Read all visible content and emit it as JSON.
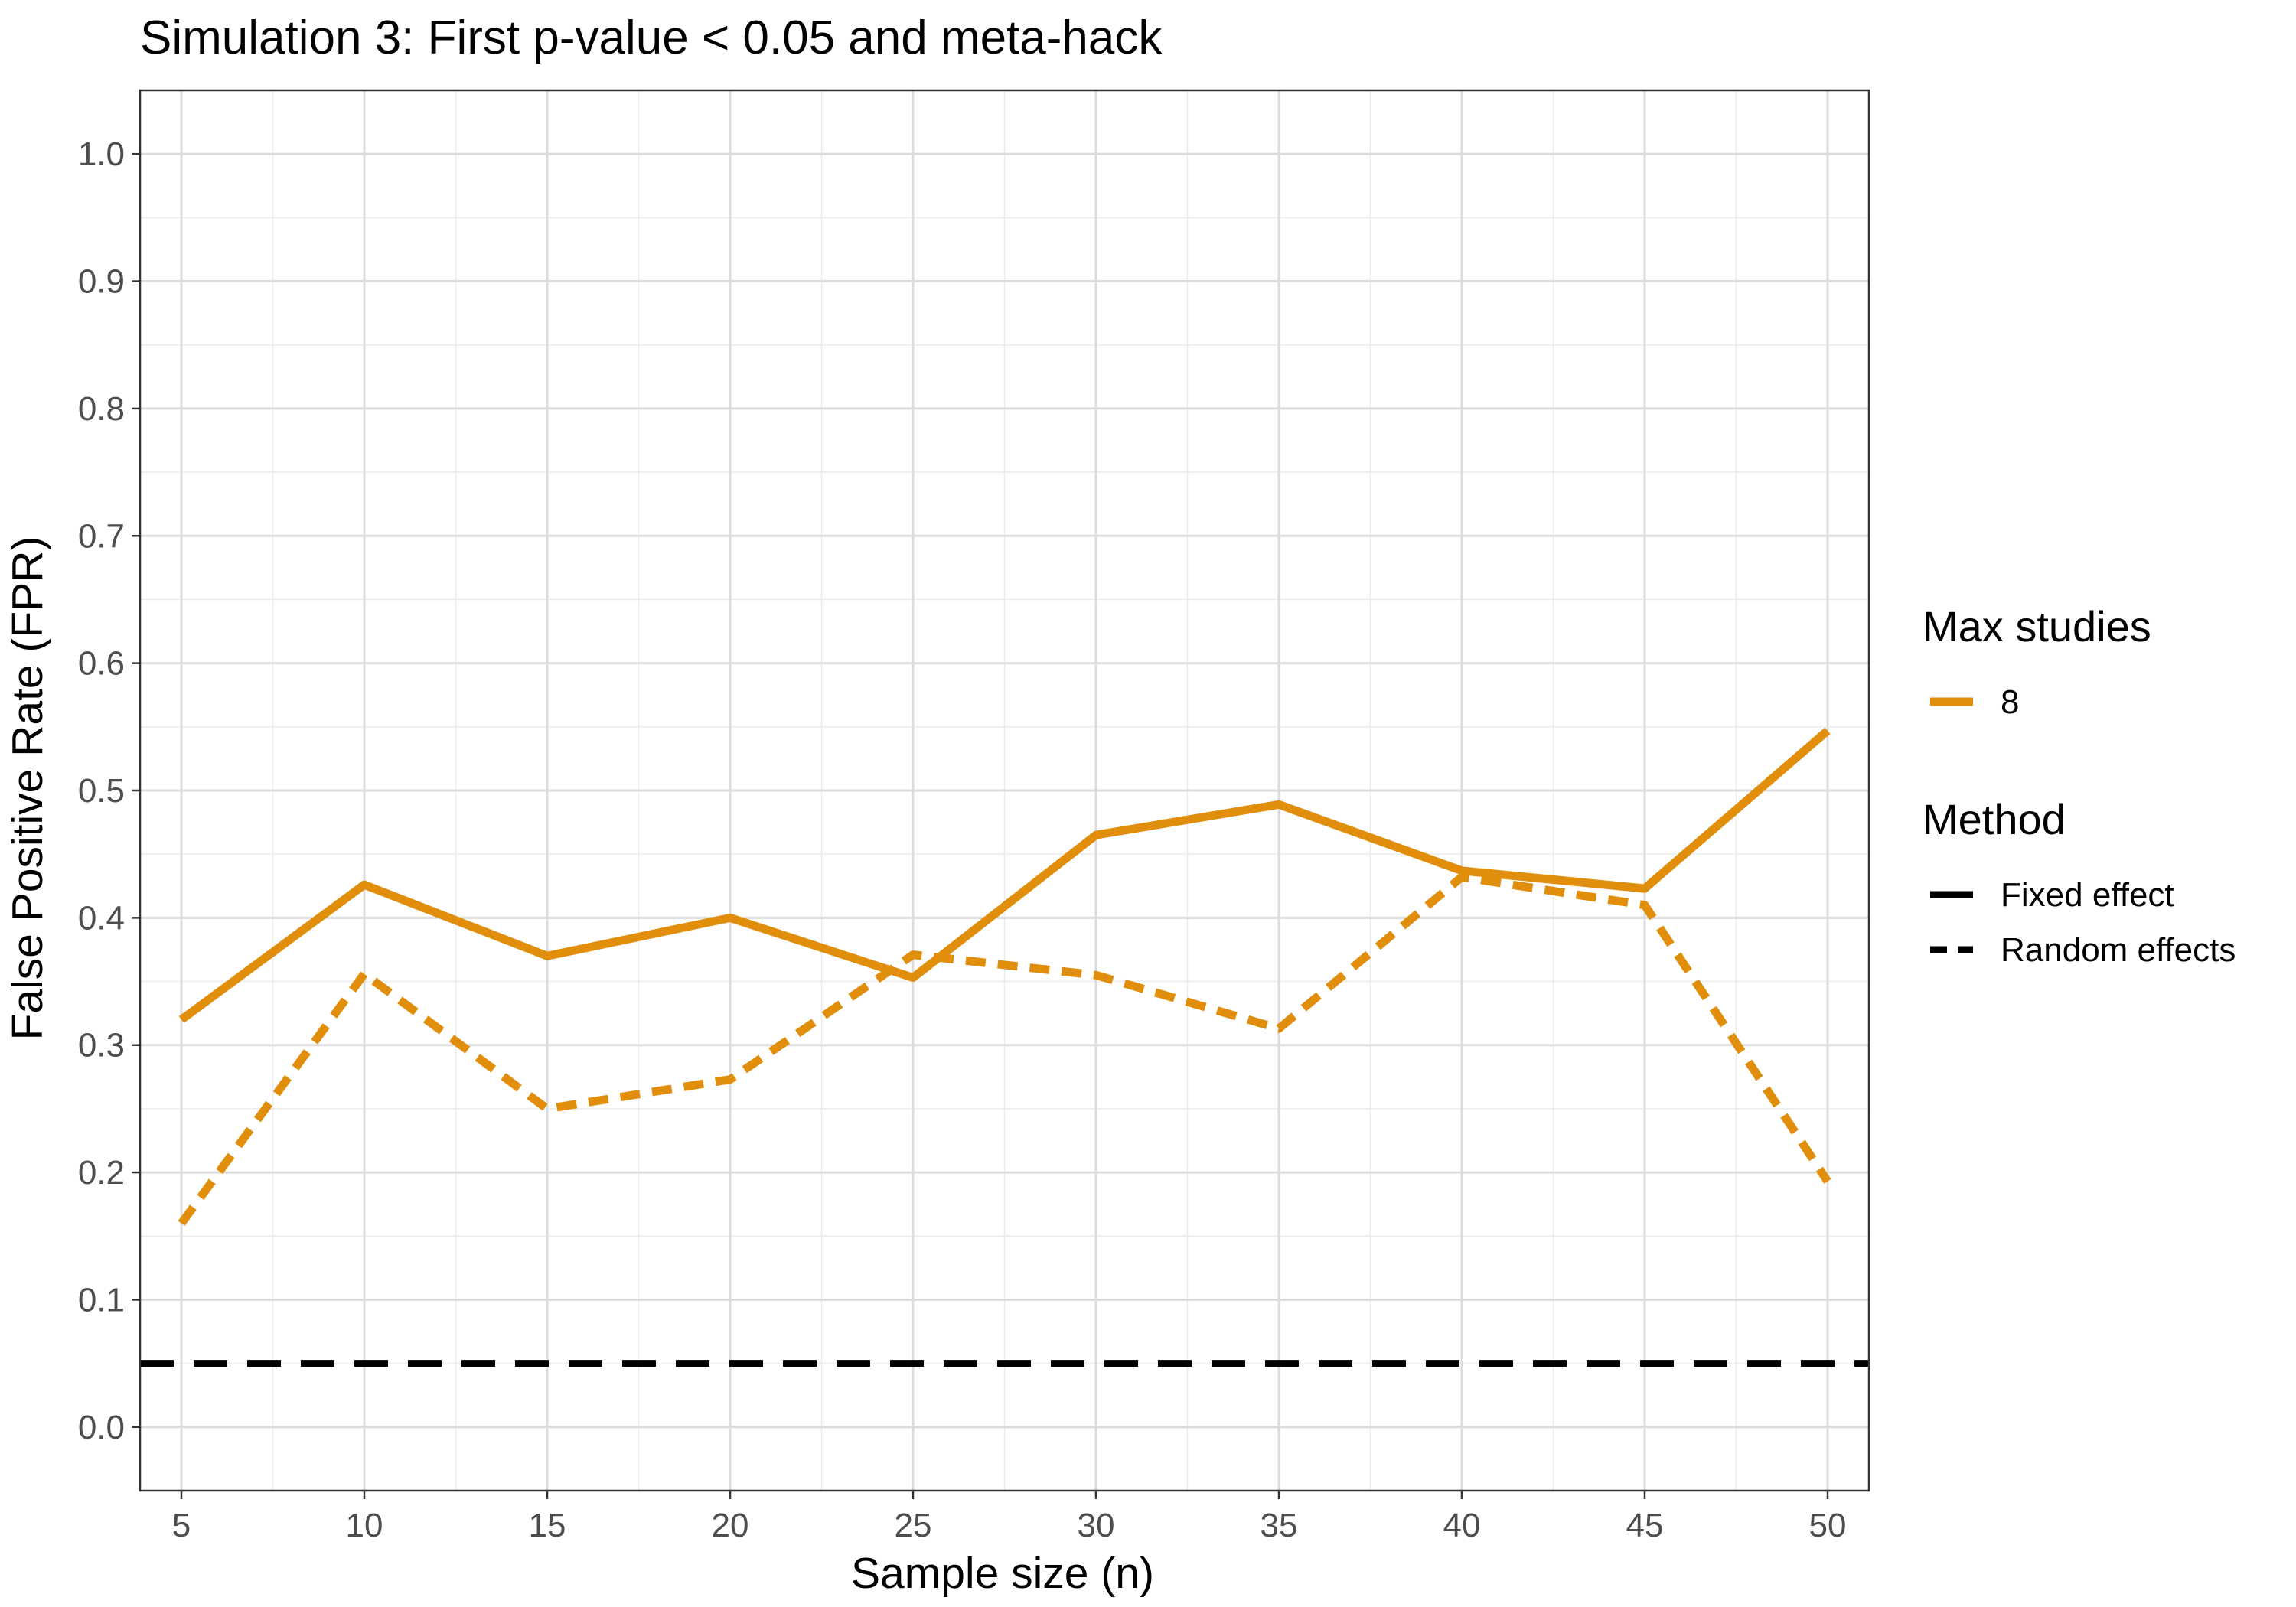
{
  "chart_data": {
    "type": "line",
    "title": "Simulation 3: First p-value < 0.05 and meta-hack",
    "xlabel": "Sample size (n)",
    "ylabel": "False Positive Rate (FPR)",
    "x": [
      5,
      10,
      15,
      20,
      25,
      30,
      35,
      40,
      45,
      50
    ],
    "xlim": [
      3.87,
      51.13
    ],
    "ylim": [
      -0.05,
      1.05
    ],
    "x_ticks": [
      "5",
      "10",
      "15",
      "20",
      "25",
      "30",
      "35",
      "40",
      "45",
      "50"
    ],
    "y_ticks": [
      "0.0",
      "0.1",
      "0.2",
      "0.3",
      "0.4",
      "0.5",
      "0.6",
      "0.7",
      "0.8",
      "0.9",
      "1.0"
    ],
    "grid": true,
    "series": [
      {
        "method": "Fixed effect",
        "max_studies": "8",
        "color": "#E08E0B",
        "values": [
          0.32,
          0.426,
          0.37,
          0.4,
          0.353,
          0.465,
          0.489,
          0.437,
          0.423,
          0.547
        ]
      },
      {
        "method": "Random effects",
        "max_studies": "8",
        "color": "#E08E0B",
        "values": [
          0.16,
          0.356,
          0.25,
          0.273,
          0.371,
          0.355,
          0.313,
          0.432,
          0.41,
          0.193
        ]
      }
    ],
    "reference_line": {
      "y": 0.05,
      "color": "#000000",
      "style": "dashed"
    },
    "legend": {
      "placement": "right",
      "groups": [
        {
          "title": "Max studies",
          "entries": [
            {
              "label": "8",
              "color": "#E08E0B",
              "style": "solid"
            }
          ]
        },
        {
          "title": "Method",
          "entries": [
            {
              "label": "Fixed effect",
              "color": "#000000",
              "style": "solid"
            },
            {
              "label": "Random effects",
              "color": "#000000",
              "style": "dashed"
            }
          ]
        }
      ]
    }
  }
}
